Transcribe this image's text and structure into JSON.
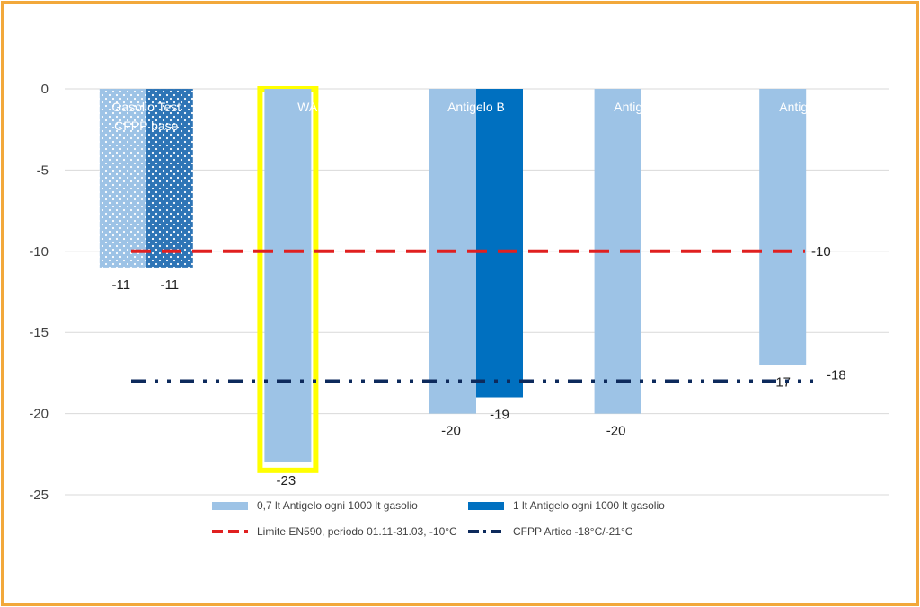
{
  "chart_data": {
    "type": "bar",
    "ylim": [
      -25,
      0
    ],
    "yticks": [
      0,
      -5,
      -10,
      -15,
      -20,
      -25
    ],
    "grid": true,
    "categories": [
      "Gasolio Test CFPP base",
      "WAFI",
      "Antigelo B",
      "Antigelo C",
      "Antigelo E"
    ],
    "category_labels": [
      [
        "Gasolio Test",
        "CFPP base"
      ],
      [
        "WAFI"
      ],
      [
        "Antigelo B"
      ],
      [
        "Antigelo C"
      ],
      [
        "Antigelo E"
      ]
    ],
    "series": [
      {
        "name": "0,7 lt Antigelo ogni 1000 lt gasolio",
        "color": "#9dc3e6",
        "values": [
          -11,
          -23,
          -20,
          -20,
          -17
        ]
      },
      {
        "name": "1 lt Antigelo ogni 1000 lt gasolio",
        "color": "#0070c0",
        "values": [
          -11,
          null,
          -19,
          null,
          null
        ]
      }
    ],
    "reference_lines": [
      {
        "name": "Limite EN590, periodo 01.11-31.03, -10°C",
        "value": -10,
        "label": "-10",
        "color": "#e02020",
        "style": "dashed"
      },
      {
        "name": "CFPP Artico -18°C/-21°C",
        "value": -18,
        "label": "-18",
        "color": "#0d2a5c",
        "style": "dash-dot-dot"
      }
    ],
    "highlight": {
      "category": "WAFI",
      "color": "#ffff00"
    },
    "legend_position": "bottom"
  }
}
